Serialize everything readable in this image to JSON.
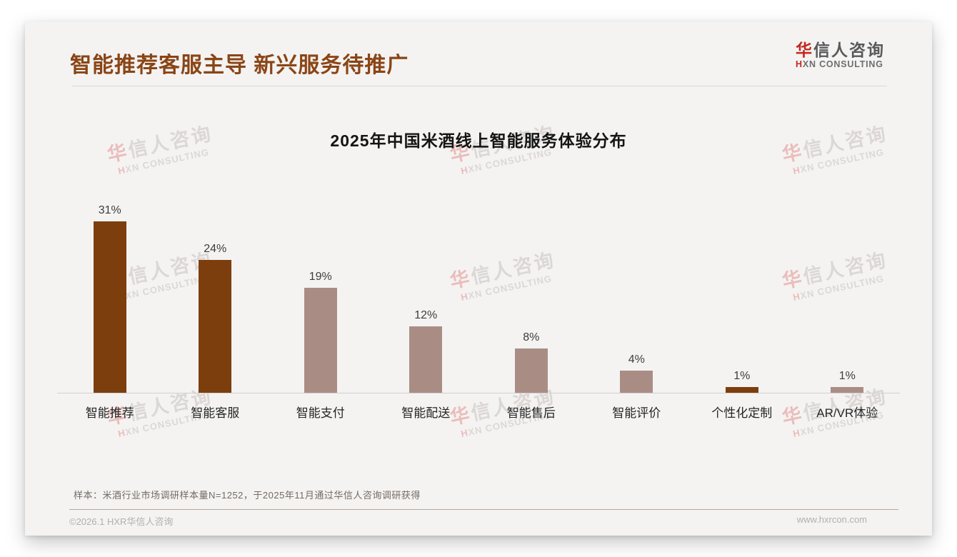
{
  "page": {
    "title": "智能推荐客服主导 新兴服务待推广"
  },
  "logo": {
    "cn_first": "华",
    "cn_rest": "信人咨询",
    "en_first": "H",
    "en_rest": "XN CONSULTING"
  },
  "watermark": {
    "cn_first": "华",
    "cn_rest": "信人咨询",
    "en_first": "H",
    "en_rest": "XN CONSULTING"
  },
  "chart_data": {
    "type": "bar",
    "title": "2025年中国米酒线上智能服务体验分布",
    "categories": [
      "智能推荐",
      "智能客服",
      "智能支付",
      "智能配送",
      "智能售后",
      "智能评价",
      "个性化定制",
      "AR/VR体验"
    ],
    "values": [
      31,
      24,
      19,
      12,
      8,
      4,
      1,
      1
    ],
    "value_labels": [
      "31%",
      "24%",
      "19%",
      "12%",
      "8%",
      "4%",
      "1%",
      "1%"
    ],
    "bar_colors": [
      "#7D3E0E",
      "#7D3E0E",
      "#A98D85",
      "#A98D85",
      "#A98D85",
      "#A98D85",
      "#7D3E0E",
      "#A98D85"
    ],
    "xlabel": "",
    "ylabel": "",
    "ylim": [
      0,
      34
    ],
    "grid": false,
    "legend": false,
    "colors_meaning": {
      "#7D3E0E": "highlight-dark-brown",
      "#A98D85": "standard-mauve"
    }
  },
  "footnote": "样本：米酒行业市场调研样本量N=1252，于2025年11月通过华信人咨询调研获得",
  "footer": {
    "left": "©2026.1 HXR华信人咨询",
    "right": "www.hxrcon.com"
  }
}
